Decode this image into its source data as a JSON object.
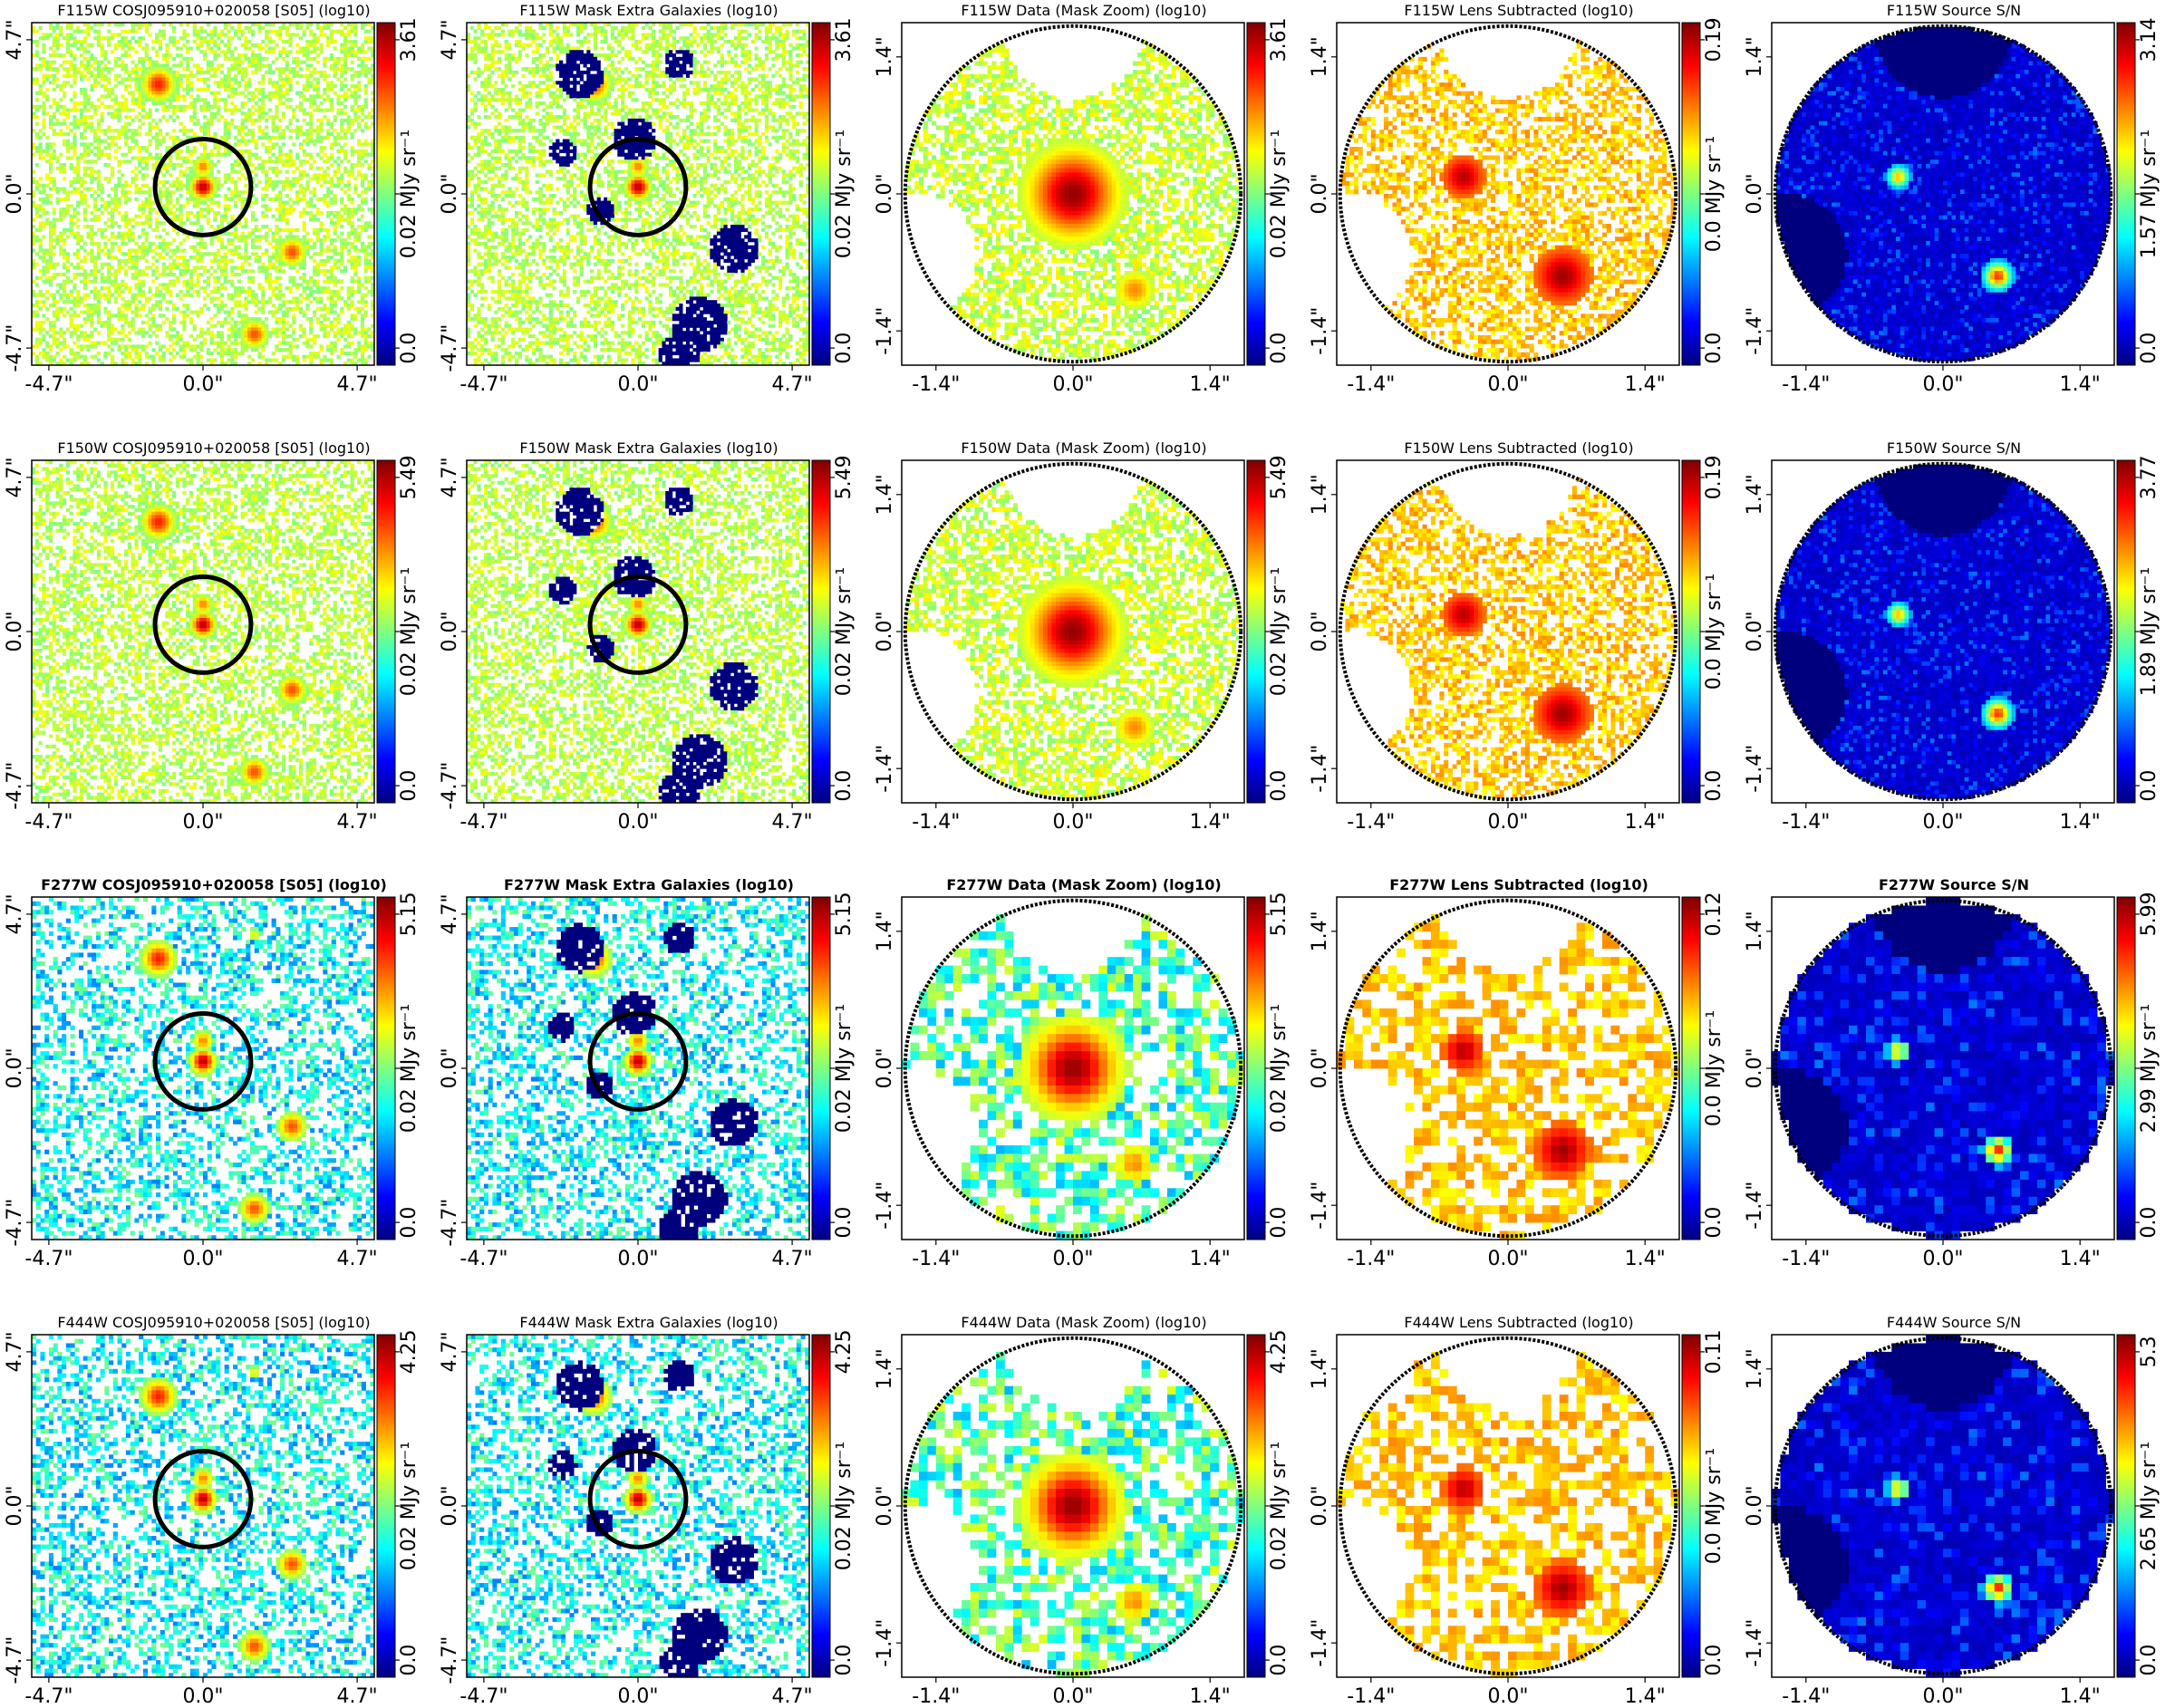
{
  "colorbar_unit": "MJy sr⁻¹",
  "colormap": {
    "name": "jet",
    "stops": [
      "#00007f",
      "#0000ff",
      "#007fff",
      "#00ffff",
      "#7fff7f",
      "#ffff00",
      "#ff7f00",
      "#ff0000",
      "#7f0000"
    ]
  },
  "panel_types": {
    "full": {
      "ticks": [
        "-4.7\"",
        "0.0\"",
        "4.7\""
      ],
      "aperture_circle": true
    },
    "mask": {
      "ticks": [
        "-4.7\"",
        "0.0\"",
        "4.7\""
      ],
      "aperture_circle": true,
      "mask_color": "#00007f"
    },
    "zoom": {
      "ticks": [
        "-1.4\"",
        "0.0\"",
        "1.4\""
      ],
      "circular_boundary": true
    }
  },
  "chart_data": [
    {
      "type": "heatmap",
      "row": 0,
      "col": 0,
      "kind": "full",
      "title": "F115W COSJ095910+020058 [S05] (log10)",
      "colorbar": {
        "min": "0.0",
        "mid": "0.02",
        "max": "3.61"
      }
    },
    {
      "type": "heatmap",
      "row": 0,
      "col": 1,
      "kind": "mask",
      "title": "F115W Mask Extra Galaxies (log10)",
      "colorbar": {
        "min": "0.0",
        "mid": "0.02",
        "max": "3.61"
      }
    },
    {
      "type": "heatmap",
      "row": 0,
      "col": 2,
      "kind": "zoom",
      "title": "F115W Data (Mask Zoom) (log10)",
      "colorbar": {
        "min": "0.0",
        "mid": "0.02",
        "max": "3.61"
      }
    },
    {
      "type": "heatmap",
      "row": 0,
      "col": 3,
      "kind": "zoom",
      "title": "F115W Lens Subtracted (log10)",
      "colorbar": {
        "min": "0.0",
        "mid": "0.0",
        "max": "0.19"
      }
    },
    {
      "type": "heatmap",
      "row": 0,
      "col": 4,
      "kind": "zoom",
      "title": "F115W Source S/N",
      "colorbar": {
        "min": "0.0",
        "mid": "1.57",
        "max": "3.14"
      }
    },
    {
      "type": "heatmap",
      "row": 1,
      "col": 0,
      "kind": "full",
      "title": "F150W COSJ095910+020058 [S05] (log10)",
      "colorbar": {
        "min": "0.0",
        "mid": "0.02",
        "max": "5.49"
      }
    },
    {
      "type": "heatmap",
      "row": 1,
      "col": 1,
      "kind": "mask",
      "title": "F150W Mask Extra Galaxies (log10)",
      "colorbar": {
        "min": "0.0",
        "mid": "0.02",
        "max": "5.49"
      }
    },
    {
      "type": "heatmap",
      "row": 1,
      "col": 2,
      "kind": "zoom",
      "title": "F150W Data (Mask Zoom) (log10)",
      "colorbar": {
        "min": "0.0",
        "mid": "0.02",
        "max": "5.49"
      }
    },
    {
      "type": "heatmap",
      "row": 1,
      "col": 3,
      "kind": "zoom",
      "title": "F150W Lens Subtracted (log10)",
      "colorbar": {
        "min": "0.0",
        "mid": "0.0",
        "max": "0.19"
      }
    },
    {
      "type": "heatmap",
      "row": 1,
      "col": 4,
      "kind": "zoom",
      "title": "F150W Source S/N",
      "colorbar": {
        "min": "0.0",
        "mid": "1.89",
        "max": "3.77"
      }
    },
    {
      "type": "heatmap",
      "row": 2,
      "col": 0,
      "kind": "full",
      "title": "F277W COSJ095910+020058 [S05] (log10)",
      "bold": true,
      "colorbar": {
        "min": "0.0",
        "mid": "0.02",
        "max": "5.15"
      }
    },
    {
      "type": "heatmap",
      "row": 2,
      "col": 1,
      "kind": "mask",
      "title": "F277W Mask Extra Galaxies (log10)",
      "bold": true,
      "colorbar": {
        "min": "0.0",
        "mid": "0.02",
        "max": "5.15"
      }
    },
    {
      "type": "heatmap",
      "row": 2,
      "col": 2,
      "kind": "zoom",
      "title": "F277W Data (Mask Zoom) (log10)",
      "bold": true,
      "colorbar": {
        "min": "0.0",
        "mid": "0.02",
        "max": "5.15"
      }
    },
    {
      "type": "heatmap",
      "row": 2,
      "col": 3,
      "kind": "zoom",
      "title": "F277W Lens Subtracted (log10)",
      "bold": true,
      "colorbar": {
        "min": "0.0",
        "mid": "0.0",
        "max": "0.12"
      }
    },
    {
      "type": "heatmap",
      "row": 2,
      "col": 4,
      "kind": "zoom",
      "title": "F277W Source S/N",
      "bold": true,
      "colorbar": {
        "min": "0.0",
        "mid": "2.99",
        "max": "5.99"
      }
    },
    {
      "type": "heatmap",
      "row": 3,
      "col": 0,
      "kind": "full",
      "title": "F444W COSJ095910+020058 [S05] (log10)",
      "colorbar": {
        "min": "0.0",
        "mid": "0.02",
        "max": "4.25"
      }
    },
    {
      "type": "heatmap",
      "row": 3,
      "col": 1,
      "kind": "mask",
      "title": "F444W Mask Extra Galaxies (log10)",
      "colorbar": {
        "min": "0.0",
        "mid": "0.02",
        "max": "4.25"
      }
    },
    {
      "type": "heatmap",
      "row": 3,
      "col": 2,
      "kind": "zoom",
      "title": "F444W Data (Mask Zoom) (log10)",
      "colorbar": {
        "min": "0.0",
        "mid": "0.02",
        "max": "4.25"
      }
    },
    {
      "type": "heatmap",
      "row": 3,
      "col": 3,
      "kind": "zoom",
      "title": "F444W Lens Subtracted (log10)",
      "colorbar": {
        "min": "0.0",
        "mid": "0.0",
        "max": "0.11"
      }
    },
    {
      "type": "heatmap",
      "row": 3,
      "col": 4,
      "kind": "zoom",
      "title": "F444W Source S/N",
      "colorbar": {
        "min": "0.0",
        "mid": "2.65",
        "max": "5.3"
      }
    }
  ]
}
